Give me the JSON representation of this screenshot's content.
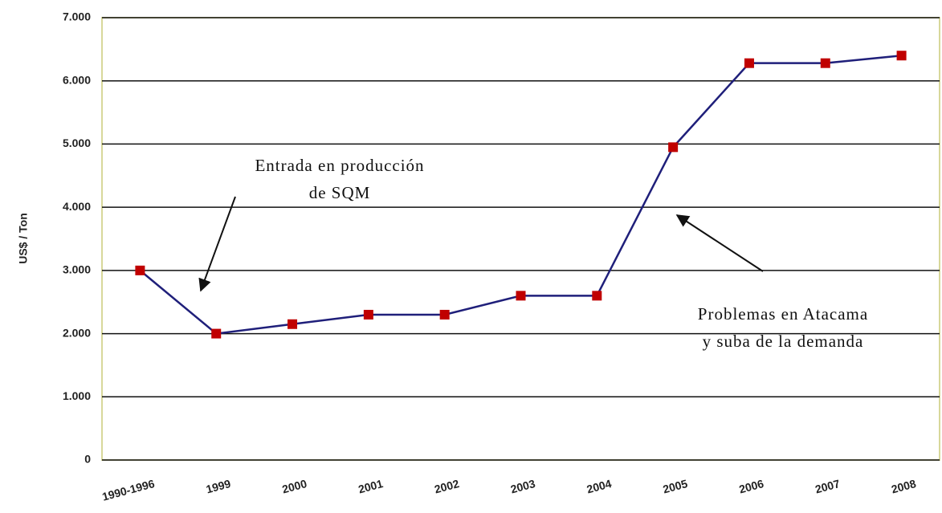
{
  "chart_data": {
    "type": "line",
    "y_label": "US$ / Ton",
    "categories": [
      "1990-1996",
      "1999",
      "2000",
      "2001",
      "2002",
      "2003",
      "2004",
      "2005",
      "2006",
      "2007",
      "2008"
    ],
    "series": [
      {
        "name": "Precio",
        "color": "#1f1f7a",
        "marker_color": "#c00000",
        "values": [
          3000,
          2000,
          2150,
          2300,
          2300,
          2600,
          2600,
          4950,
          6280,
          6280,
          6400
        ]
      }
    ],
    "ylim": [
      0,
      7000
    ],
    "yticks": [
      0,
      {
        "value": 1000,
        "label": "1.000"
      },
      {
        "value": 2000,
        "label": "2.000"
      },
      {
        "value": 3000,
        "label": "3.000"
      },
      {
        "value": 4000,
        "label": "4.000"
      },
      {
        "value": 5000,
        "label": "5.000"
      },
      {
        "value": 6000,
        "label": "6.000"
      },
      {
        "value": 7000,
        "label": "7.000"
      }
    ],
    "grid": true,
    "annotations": [
      {
        "lines": [
          "Entrada en producción",
          "de SQM"
        ]
      },
      {
        "lines": [
          "Problemas en Atacama",
          "y suba de la demanda"
        ]
      }
    ]
  }
}
